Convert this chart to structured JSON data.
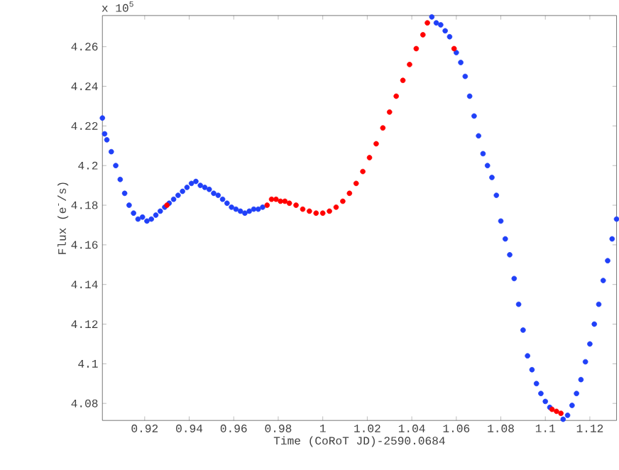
{
  "chart_data": {
    "type": "scatter",
    "xlabel": "Time (CoRoT JD)-2590.0684",
    "ylabel": "Flux (e$^{-}$/s)",
    "annotations": [
      "x 10$^{5}$"
    ],
    "xlim": [
      0.901,
      1.132
    ],
    "ylim": [
      4.0714,
      4.2757
    ],
    "xticks": [
      0.92,
      0.94,
      0.96,
      0.98,
      1,
      1.02,
      1.04,
      1.06,
      1.08,
      1.1,
      1.12
    ],
    "yticks": [
      4.08,
      4.1,
      4.12,
      4.14,
      4.16,
      4.18,
      4.2,
      4.22,
      4.24,
      4.26
    ],
    "grid": false,
    "marker": "circle",
    "series": [
      {
        "color": "#2040f8",
        "x": [
          0.901,
          0.902,
          0.903,
          0.905,
          0.907,
          0.909,
          0.911,
          0.913,
          0.915,
          0.917,
          0.919,
          0.921,
          0.923,
          0.925,
          0.927,
          0.929,
          0.931,
          0.933,
          0.935,
          0.937,
          0.939,
          0.941,
          0.943,
          0.945,
          0.947,
          0.949,
          0.951,
          0.953,
          0.955,
          0.957,
          0.959,
          0.961,
          0.963,
          0.965,
          0.967,
          0.969,
          0.971,
          0.973,
          1.049,
          1.051,
          1.053,
          1.055,
          1.057,
          1.06,
          1.062,
          1.064,
          1.066,
          1.068,
          1.07,
          1.072,
          1.074,
          1.076,
          1.078,
          1.08,
          1.082,
          1.084,
          1.086,
          1.088,
          1.09,
          1.092,
          1.094,
          1.096,
          1.098,
          1.1,
          1.102,
          1.108,
          1.11,
          1.112,
          1.114,
          1.116,
          1.118,
          1.12,
          1.122,
          1.124,
          1.126,
          1.128,
          1.13,
          1.132
        ],
        "values": [
          4.224,
          4.216,
          4.213,
          4.207,
          4.2,
          4.193,
          4.186,
          4.18,
          4.176,
          4.173,
          4.174,
          4.172,
          4.173,
          4.175,
          4.177,
          4.179,
          4.181,
          4.183,
          4.185,
          4.187,
          4.189,
          4.191,
          4.192,
          4.19,
          4.189,
          4.188,
          4.186,
          4.185,
          4.183,
          4.181,
          4.179,
          4.178,
          4.177,
          4.176,
          4.177,
          4.178,
          4.178,
          4.179,
          4.275,
          4.272,
          4.271,
          4.268,
          4.265,
          4.257,
          4.252,
          4.245,
          4.235,
          4.225,
          4.215,
          4.206,
          4.2,
          4.194,
          4.185,
          4.172,
          4.163,
          4.155,
          4.143,
          4.13,
          4.117,
          4.104,
          4.097,
          4.09,
          4.085,
          4.081,
          4.078,
          4.072,
          4.074,
          4.079,
          4.085,
          4.092,
          4.101,
          4.11,
          4.12,
          4.13,
          4.142,
          4.152,
          4.163,
          4.173
        ]
      },
      {
        "color": "#ff0000",
        "x": [
          0.93,
          0.975,
          0.977,
          0.979,
          0.981,
          0.983,
          0.985,
          0.988,
          0.991,
          0.994,
          0.997,
          1.0,
          1.003,
          1.006,
          1.009,
          1.012,
          1.015,
          1.018,
          1.021,
          1.024,
          1.027,
          1.03,
          1.033,
          1.036,
          1.039,
          1.042,
          1.045,
          1.047,
          1.059,
          1.103,
          1.105,
          1.107
        ],
        "values": [
          4.18,
          4.18,
          4.183,
          4.183,
          4.182,
          4.182,
          4.181,
          4.18,
          4.178,
          4.177,
          4.176,
          4.176,
          4.177,
          4.179,
          4.182,
          4.186,
          4.191,
          4.197,
          4.204,
          4.211,
          4.219,
          4.227,
          4.235,
          4.243,
          4.251,
          4.259,
          4.266,
          4.272,
          4.259,
          4.077,
          4.076,
          4.075
        ]
      }
    ]
  }
}
